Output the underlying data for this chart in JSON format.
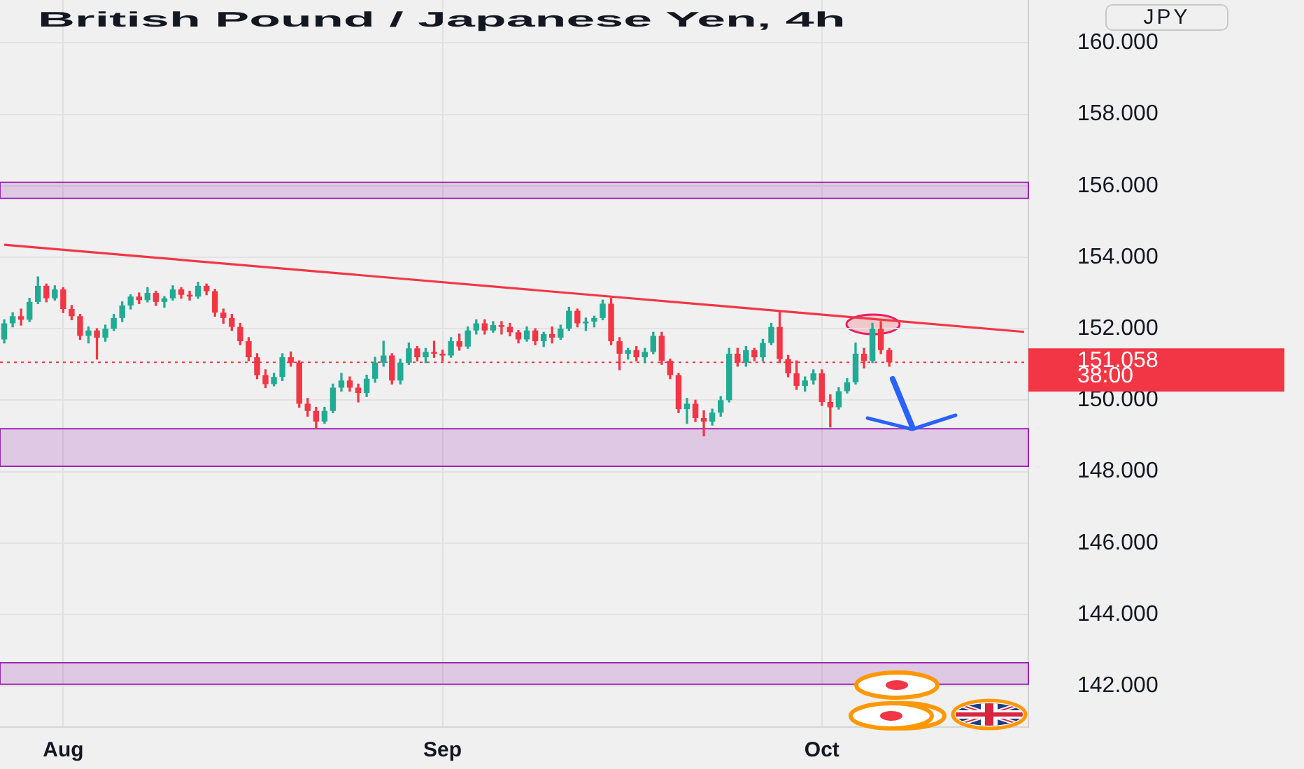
{
  "chart_data": {
    "type": "candlestick",
    "title": "British Pound / Japanese Yen, 4h",
    "categories": [
      null,
      null,
      null,
      null,
      null,
      null,
      null,
      "Aug",
      null,
      null,
      null,
      null,
      null,
      null,
      null,
      null,
      null,
      null,
      null,
      null,
      null,
      null,
      null,
      null,
      null,
      null,
      null,
      null,
      null,
      null,
      null,
      null,
      null,
      null,
      null,
      null,
      null,
      null,
      null,
      null,
      null,
      null,
      null,
      null,
      null,
      null,
      null,
      null,
      null,
      null,
      null,
      null,
      "Sep",
      null,
      null,
      null,
      null,
      null,
      null,
      null,
      null,
      null,
      null,
      null,
      null,
      null,
      null,
      null,
      null,
      null,
      null,
      null,
      null,
      null,
      null,
      null,
      null,
      null,
      null,
      null,
      null,
      null,
      null,
      null,
      null,
      null,
      null,
      null,
      null,
      null,
      null,
      null,
      null,
      null,
      null,
      null,
      null,
      "Oct",
      null,
      null,
      null,
      null,
      null,
      null,
      null,
      null,
      null,
      null,
      null,
      null,
      null,
      null,
      null,
      null,
      null,
      null,
      null,
      null,
      null,
      null,
      null,
      null
    ],
    "ohlc": [
      [
        151.7,
        152.25,
        151.6,
        152.15
      ],
      [
        152.15,
        152.45,
        152.05,
        152.35
      ],
      [
        152.35,
        152.55,
        152.1,
        152.25
      ],
      [
        152.25,
        152.85,
        152.2,
        152.75
      ],
      [
        152.75,
        153.45,
        152.7,
        153.2
      ],
      [
        153.2,
        153.25,
        152.75,
        152.85
      ],
      [
        152.85,
        153.2,
        152.8,
        153.1
      ],
      [
        153.1,
        153.15,
        152.45,
        152.55
      ],
      [
        152.55,
        152.65,
        152.25,
        152.35
      ],
      [
        152.35,
        152.4,
        151.7,
        151.8
      ],
      [
        151.8,
        152.05,
        151.6,
        151.95
      ],
      [
        151.95,
        152.0,
        151.15,
        151.75
      ],
      [
        151.75,
        152.1,
        151.65,
        152.0
      ],
      [
        152.0,
        152.4,
        151.95,
        152.3
      ],
      [
        152.3,
        152.75,
        152.2,
        152.65
      ],
      [
        152.65,
        152.95,
        152.55,
        152.9
      ],
      [
        152.9,
        153.0,
        152.7,
        152.8
      ],
      [
        152.8,
        153.15,
        152.75,
        153.0
      ],
      [
        153.0,
        153.05,
        152.65,
        152.75
      ],
      [
        152.75,
        152.9,
        152.6,
        152.85
      ],
      [
        152.85,
        153.2,
        152.8,
        153.1
      ],
      [
        153.1,
        153.15,
        152.85,
        152.95
      ],
      [
        152.95,
        153.05,
        152.8,
        152.9
      ],
      [
        152.9,
        153.3,
        152.85,
        153.2
      ],
      [
        153.2,
        153.25,
        152.95,
        153.05
      ],
      [
        153.05,
        153.1,
        152.35,
        152.45
      ],
      [
        152.45,
        152.55,
        152.15,
        152.3
      ],
      [
        152.3,
        152.4,
        151.95,
        152.05
      ],
      [
        152.05,
        152.15,
        151.55,
        151.65
      ],
      [
        151.65,
        151.75,
        151.1,
        151.2
      ],
      [
        151.2,
        151.3,
        150.6,
        150.7
      ],
      [
        150.7,
        150.85,
        150.35,
        150.45
      ],
      [
        150.45,
        150.75,
        150.4,
        150.65
      ],
      [
        150.65,
        151.3,
        150.55,
        151.2
      ],
      [
        151.2,
        151.35,
        150.95,
        151.05
      ],
      [
        151.05,
        151.1,
        149.8,
        149.9
      ],
      [
        149.9,
        150.05,
        149.55,
        149.7
      ],
      [
        149.7,
        149.8,
        149.2,
        149.4
      ],
      [
        149.4,
        149.8,
        149.35,
        149.7
      ],
      [
        149.7,
        150.45,
        149.65,
        150.35
      ],
      [
        150.35,
        150.75,
        150.25,
        150.55
      ],
      [
        150.55,
        150.65,
        150.25,
        150.35
      ],
      [
        150.35,
        150.45,
        149.95,
        150.2
      ],
      [
        150.2,
        150.7,
        150.1,
        150.6
      ],
      [
        150.6,
        151.2,
        150.5,
        151.05
      ],
      [
        151.05,
        151.65,
        150.95,
        151.25
      ],
      [
        151.25,
        151.3,
        150.45,
        150.55
      ],
      [
        150.55,
        151.15,
        150.45,
        151.05
      ],
      [
        151.05,
        151.6,
        151.0,
        151.45
      ],
      [
        151.45,
        151.5,
        151.1,
        151.2
      ],
      [
        151.2,
        151.45,
        151.05,
        151.35
      ],
      [
        151.35,
        151.65,
        151.2,
        151.3
      ],
      [
        151.3,
        151.4,
        151.1,
        151.25
      ],
      [
        151.25,
        151.75,
        151.2,
        151.65
      ],
      [
        151.65,
        151.85,
        151.4,
        151.5
      ],
      [
        151.5,
        152.05,
        151.45,
        151.95
      ],
      [
        151.95,
        152.25,
        151.85,
        152.15
      ],
      [
        152.15,
        152.25,
        151.85,
        151.95
      ],
      [
        151.95,
        152.2,
        151.9,
        152.1
      ],
      [
        152.1,
        152.2,
        151.85,
        152.05
      ],
      [
        152.05,
        152.15,
        151.8,
        151.9
      ],
      [
        151.9,
        151.95,
        151.6,
        151.7
      ],
      [
        151.7,
        152.05,
        151.65,
        151.95
      ],
      [
        151.95,
        152.0,
        151.55,
        151.65
      ],
      [
        151.65,
        151.9,
        151.5,
        151.85
      ],
      [
        151.85,
        152.05,
        151.6,
        151.75
      ],
      [
        151.75,
        152.1,
        151.7,
        152.0
      ],
      [
        152.0,
        152.6,
        151.95,
        152.5
      ],
      [
        152.5,
        152.55,
        152.05,
        152.15
      ],
      [
        152.15,
        152.3,
        151.95,
        152.2
      ],
      [
        152.2,
        152.35,
        152.05,
        152.3
      ],
      [
        152.3,
        152.8,
        152.25,
        152.7
      ],
      [
        152.7,
        152.85,
        151.55,
        151.65
      ],
      [
        151.65,
        151.75,
        150.85,
        151.3
      ],
      [
        151.3,
        151.45,
        151.15,
        151.4
      ],
      [
        151.4,
        151.5,
        151.1,
        151.2
      ],
      [
        151.2,
        151.45,
        151.05,
        151.35
      ],
      [
        151.35,
        151.9,
        151.3,
        151.8
      ],
      [
        151.8,
        151.9,
        151.0,
        151.1
      ],
      [
        151.1,
        151.15,
        150.6,
        150.7
      ],
      [
        150.7,
        150.75,
        149.65,
        149.75
      ],
      [
        149.75,
        150.05,
        149.35,
        149.9
      ],
      [
        149.9,
        150.0,
        149.4,
        149.5
      ],
      [
        149.5,
        149.7,
        149.0,
        149.4
      ],
      [
        149.4,
        149.75,
        149.3,
        149.65
      ],
      [
        149.65,
        150.1,
        149.55,
        150.0
      ],
      [
        150.0,
        151.45,
        149.95,
        151.3
      ],
      [
        151.3,
        151.45,
        150.95,
        151.05
      ],
      [
        151.05,
        151.5,
        150.95,
        151.4
      ],
      [
        151.4,
        151.45,
        151.1,
        151.2
      ],
      [
        151.2,
        151.7,
        151.1,
        151.6
      ],
      [
        151.6,
        152.15,
        151.55,
        152.05
      ],
      [
        152.05,
        152.5,
        151.05,
        151.15
      ],
      [
        151.15,
        151.25,
        150.65,
        150.75
      ],
      [
        150.75,
        151.1,
        150.3,
        150.4
      ],
      [
        150.4,
        150.65,
        150.25,
        150.55
      ],
      [
        150.55,
        150.85,
        150.45,
        150.75
      ],
      [
        150.75,
        150.85,
        149.85,
        149.95
      ],
      [
        149.95,
        150.15,
        149.25,
        149.8
      ],
      [
        149.8,
        150.35,
        149.75,
        150.25
      ],
      [
        150.25,
        150.6,
        150.2,
        150.5
      ],
      [
        150.5,
        151.6,
        150.45,
        151.3
      ],
      [
        151.3,
        151.45,
        150.9,
        151.1
      ],
      [
        151.1,
        152.15,
        151.05,
        152.0
      ],
      [
        152.0,
        152.2,
        151.3,
        151.4
      ],
      [
        151.4,
        151.45,
        150.95,
        151.058
      ],
      null,
      null,
      null,
      null,
      null,
      null,
      null,
      null,
      null,
      null,
      null,
      null,
      null,
      null,
      null,
      null
    ],
    "colors": [
      "#22ab94",
      "#22ab94",
      "#f23645",
      "#22ab94",
      "#22ab94",
      "#f23645",
      "#22ab94",
      "#f23645",
      "#f23645",
      "#f23645",
      "#22ab94",
      "#f23645",
      "#22ab94",
      "#22ab94",
      "#22ab94",
      "#22ab94",
      "#f23645",
      "#22ab94",
      "#f23645",
      "#22ab94",
      "#22ab94",
      "#f23645",
      "#f23645",
      "#22ab94",
      "#f23645",
      "#f23645",
      "#f23645",
      "#f23645",
      "#f23645",
      "#f23645",
      "#f23645",
      "#f23645",
      "#22ab94",
      "#22ab94",
      "#f23645",
      "#f23645",
      "#f23645",
      "#f23645",
      "#22ab94",
      "#22ab94",
      "#22ab94",
      "#f23645",
      "#f23645",
      "#22ab94",
      "#22ab94",
      "#22ab94",
      "#f23645",
      "#22ab94",
      "#22ab94",
      "#f23645",
      "#22ab94",
      "#f23645",
      "#f23645",
      "#22ab94",
      "#f23645",
      "#22ab94",
      "#22ab94",
      "#f23645",
      "#22ab94",
      "#f23645",
      "#f23645",
      "#f23645",
      "#22ab94",
      "#f23645",
      "#22ab94",
      "#f23645",
      "#22ab94",
      "#22ab94",
      "#f23645",
      "#22ab94",
      "#22ab94",
      "#22ab94",
      "#f23645",
      "#f23645",
      "#22ab94",
      "#f23645",
      "#22ab94",
      "#22ab94",
      "#f23645",
      "#f23645",
      "#f23645",
      "#22ab94",
      "#f23645",
      "#f23645",
      "#22ab94",
      "#22ab94",
      "#22ab94",
      "#f23645",
      "#22ab94",
      "#f23645",
      "#22ab94",
      "#22ab94",
      "#f23645",
      "#f23645",
      "#f23645",
      "#22ab94",
      "#22ab94",
      "#f23645",
      "#f23645",
      "#22ab94",
      "#22ab94",
      "#22ab94",
      "#f23645",
      "#22ab94",
      "#f23645",
      "#f23645",
      null,
      null,
      null,
      null,
      null,
      null,
      null,
      null,
      null,
      null,
      null,
      null,
      null,
      null,
      null,
      null
    ],
    "series": [
      {
        "type": "line",
        "color": "#f23645",
        "values": [
          154.35,
          null,
          null,
          null,
          null,
          null,
          null,
          null,
          null,
          null,
          null,
          null,
          null,
          null,
          null,
          null,
          null,
          null,
          null,
          null,
          null,
          null,
          null,
          null,
          null,
          null,
          null,
          null,
          null,
          null,
          null,
          null,
          null,
          null,
          null,
          null,
          null,
          null,
          null,
          null,
          null,
          null,
          null,
          null,
          null,
          null,
          null,
          null,
          null,
          null,
          null,
          null,
          null,
          null,
          null,
          null,
          null,
          null,
          null,
          null,
          null,
          null,
          null,
          null,
          null,
          null,
          null,
          null,
          null,
          null,
          null,
          null,
          null,
          null,
          null,
          null,
          null,
          null,
          null,
          null,
          null,
          null,
          null,
          null,
          null,
          null,
          null,
          null,
          null,
          null,
          null,
          null,
          null,
          null,
          null,
          null,
          null,
          null,
          null,
          null,
          null,
          null,
          null,
          null,
          null,
          null,
          null,
          null,
          null,
          null,
          null,
          null,
          null,
          null,
          null,
          null,
          null,
          null,
          null,
          null,
          null,
          151.91
        ]
      }
    ],
    "ylim": [
      140.85,
      161.2
    ],
    "yticks": [
      {
        "value": 142,
        "label": "142.000"
      },
      {
        "value": 144,
        "label": "144.000"
      },
      {
        "value": 146,
        "label": "146.000"
      },
      {
        "value": 148,
        "label": "148.000"
      },
      {
        "value": 150,
        "label": "150.000"
      },
      {
        "value": 152,
        "label": "152.000"
      },
      {
        "value": 154,
        "label": "154.000"
      },
      {
        "value": 156,
        "label": "156.000"
      },
      {
        "value": 158,
        "label": "158.000"
      },
      {
        "value": 160,
        "label": "160.000"
      }
    ],
    "bands": [
      {
        "axis": "y",
        "from": 155.65,
        "to": 156.1,
        "color": "#9c27b0"
      },
      {
        "axis": "y",
        "from": 148.15,
        "to": 149.2,
        "color": "#9c27b0"
      },
      {
        "axis": "y",
        "from": 142.05,
        "to": 142.65,
        "color": "#9c27b0"
      }
    ],
    "ref_lines": [
      {
        "axis": "y",
        "value": 151.058,
        "label": "151.058",
        "color": "#f23645",
        "line_style": "dotted"
      }
    ],
    "annotations": [
      "JPY",
      "38:00"
    ],
    "grid": true
  }
}
